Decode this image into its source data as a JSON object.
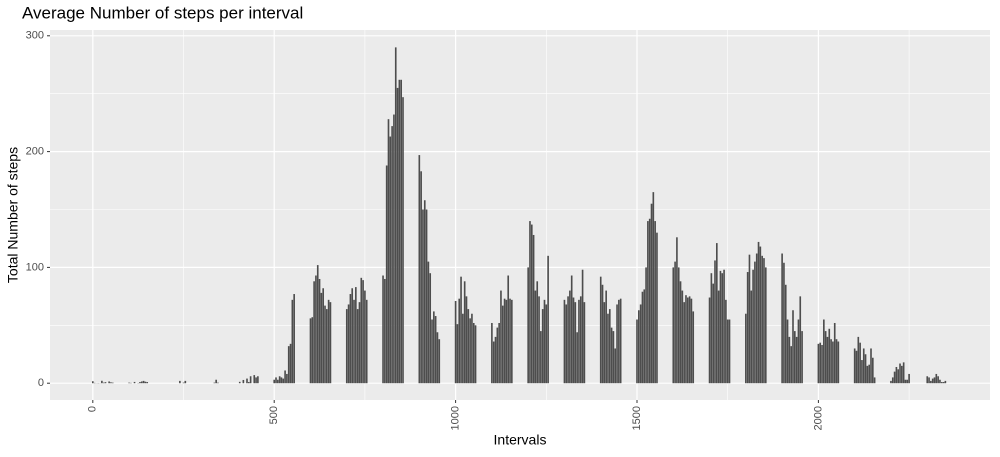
{
  "chart_data": {
    "type": "bar",
    "title": "Average Number of steps per interval",
    "x_label": "Intervals",
    "y_label": "Total Number of steps",
    "color": "#4d4d4d",
    "grid": true,
    "xlim": [
      -118,
      2473
    ],
    "ylim": [
      -14.5,
      305
    ],
    "xticks": [
      0,
      500,
      1000,
      1500,
      2000
    ],
    "yticks": [
      0,
      100,
      200,
      300
    ],
    "x": [
      0,
      5,
      10,
      15,
      20,
      25,
      30,
      35,
      40,
      45,
      50,
      55,
      100,
      105,
      110,
      115,
      120,
      125,
      130,
      135,
      140,
      145,
      150,
      155,
      200,
      205,
      210,
      215,
      220,
      225,
      230,
      235,
      240,
      245,
      250,
      255,
      300,
      305,
      310,
      315,
      320,
      325,
      330,
      335,
      340,
      345,
      350,
      355,
      400,
      405,
      410,
      415,
      420,
      425,
      430,
      435,
      440,
      445,
      450,
      455,
      500,
      505,
      510,
      515,
      520,
      525,
      530,
      535,
      540,
      545,
      550,
      555,
      600,
      605,
      610,
      615,
      620,
      625,
      630,
      635,
      640,
      645,
      650,
      655,
      700,
      705,
      710,
      715,
      720,
      725,
      730,
      735,
      740,
      745,
      750,
      755,
      800,
      805,
      810,
      815,
      820,
      825,
      830,
      835,
      840,
      845,
      850,
      855,
      900,
      905,
      910,
      915,
      920,
      925,
      930,
      935,
      940,
      945,
      950,
      955,
      1000,
      1005,
      1010,
      1015,
      1020,
      1025,
      1030,
      1035,
      1040,
      1045,
      1050,
      1055,
      1100,
      1105,
      1110,
      1115,
      1120,
      1125,
      1130,
      1135,
      1140,
      1145,
      1150,
      1155,
      1200,
      1205,
      1210,
      1215,
      1220,
      1225,
      1230,
      1235,
      1240,
      1245,
      1250,
      1255,
      1300,
      1305,
      1310,
      1315,
      1320,
      1325,
      1330,
      1335,
      1340,
      1345,
      1350,
      1355,
      1400,
      1405,
      1410,
      1415,
      1420,
      1425,
      1430,
      1435,
      1440,
      1445,
      1450,
      1455,
      1500,
      1505,
      1510,
      1515,
      1520,
      1525,
      1530,
      1535,
      1540,
      1545,
      1550,
      1555,
      1600,
      1605,
      1610,
      1615,
      1620,
      1625,
      1630,
      1635,
      1640,
      1645,
      1650,
      1655,
      1700,
      1705,
      1710,
      1715,
      1720,
      1725,
      1730,
      1735,
      1740,
      1745,
      1750,
      1755,
      1800,
      1805,
      1810,
      1815,
      1820,
      1825,
      1830,
      1835,
      1840,
      1845,
      1850,
      1855,
      1900,
      1905,
      1910,
      1915,
      1920,
      1925,
      1930,
      1935,
      1940,
      1945,
      1950,
      1955,
      2000,
      2005,
      2010,
      2015,
      2020,
      2025,
      2030,
      2035,
      2040,
      2045,
      2050,
      2055,
      2100,
      2105,
      2110,
      2115,
      2120,
      2125,
      2130,
      2135,
      2140,
      2145,
      2150,
      2155,
      2200,
      2205,
      2210,
      2215,
      2220,
      2225,
      2230,
      2235,
      2240,
      2245,
      2250,
      2255,
      2300,
      2305,
      2310,
      2315,
      2320,
      2325,
      2330,
      2335,
      2340,
      2345,
      2350,
      2355
    ],
    "values": [
      1.7,
      0.3,
      0.1,
      0.2,
      0.1,
      2.1,
      0.5,
      0.9,
      0,
      1.5,
      0.8,
      0.5,
      0.5,
      0.3,
      0,
      1.1,
      0,
      0.2,
      1,
      1.5,
      2,
      1.3,
      1,
      0,
      0,
      0,
      0,
      0,
      0,
      0,
      0,
      0,
      2,
      0,
      0.5,
      2,
      0,
      0,
      0,
      0,
      0,
      0,
      0,
      0.5,
      3,
      0.5,
      0,
      0,
      0,
      1.2,
      0,
      2.8,
      0,
      4,
      1,
      6,
      0,
      7,
      5,
      6,
      3,
      5,
      3,
      6,
      5,
      4,
      11,
      8,
      32,
      34,
      72,
      77,
      56,
      57,
      88,
      93,
      102,
      90,
      78,
      82,
      67,
      64,
      72,
      70,
      64,
      68,
      77,
      82,
      72,
      83,
      64,
      70,
      91,
      89,
      80,
      72,
      93,
      90,
      188,
      228,
      213,
      222,
      232,
      290,
      255,
      262,
      262,
      247,
      197,
      183,
      150,
      158,
      150,
      105,
      95,
      55,
      62,
      58,
      44,
      38,
      71,
      51,
      73,
      92,
      60,
      88,
      75,
      64,
      56,
      60,
      52,
      50,
      52,
      36,
      40,
      48,
      52,
      80,
      67,
      73,
      72,
      93,
      73,
      72,
      100,
      140,
      137,
      128,
      80,
      88,
      75,
      45,
      64,
      72,
      68,
      110,
      72,
      68,
      75,
      80,
      93,
      74,
      70,
      44,
      72,
      75,
      98,
      70,
      92,
      85,
      70,
      80,
      60,
      64,
      48,
      45,
      30,
      68,
      72,
      73,
      55,
      63,
      68,
      79,
      81,
      100,
      140,
      142,
      155,
      165,
      140,
      130,
      100,
      105,
      126,
      100,
      88,
      80,
      70,
      76,
      74,
      75,
      73,
      62,
      74,
      95,
      86,
      106,
      121,
      80,
      97,
      95,
      98,
      72,
      55,
      55,
      60,
      96,
      111,
      80,
      98,
      105,
      112,
      122,
      118,
      110,
      108,
      100,
      112,
      104,
      85,
      55,
      40,
      32,
      63,
      45,
      40,
      55,
      75,
      45,
      34,
      35,
      33,
      55,
      45,
      40,
      47,
      38,
      36,
      52,
      38,
      36,
      30,
      28,
      40,
      35,
      20,
      30,
      25,
      15,
      16,
      30,
      22,
      5,
      2,
      5,
      10,
      14,
      12,
      17,
      15,
      18,
      3,
      3,
      8,
      0,
      6,
      5,
      2,
      4,
      5,
      8,
      6,
      3,
      1,
      1,
      2,
      0
    ]
  }
}
